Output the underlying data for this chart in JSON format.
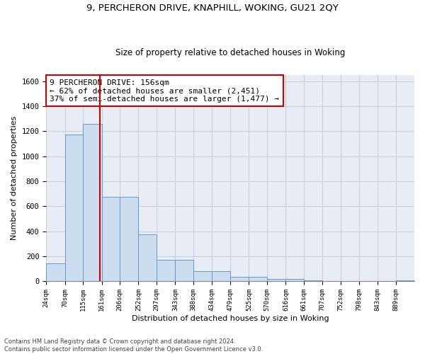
{
  "title_line1": "9, PERCHERON DRIVE, KNAPHILL, WOKING, GU21 2QY",
  "title_line2": "Size of property relative to detached houses in Woking",
  "xlabel": "Distribution of detached houses by size in Woking",
  "ylabel": "Number of detached properties",
  "bar_color": "#ccddf0",
  "bar_edge_color": "#6699cc",
  "grid_color": "#c8d0e0",
  "background_color": "#e8edf5",
  "annotation_box_color": "#cc0000",
  "vline_color": "#cc0000",
  "bins": [
    24,
    70,
    115,
    161,
    206,
    252,
    297,
    343,
    388,
    434,
    479,
    525,
    570,
    616,
    661,
    707,
    752,
    798,
    843,
    889,
    934
  ],
  "values": [
    145,
    1175,
    1260,
    675,
    675,
    375,
    170,
    170,
    80,
    80,
    35,
    35,
    20,
    20,
    10,
    0,
    0,
    0,
    0,
    10
  ],
  "ylim": [
    0,
    1650
  ],
  "yticks": [
    0,
    200,
    400,
    600,
    800,
    1000,
    1200,
    1400,
    1600
  ],
  "property_size": 156,
  "annotation_line1": "9 PERCHERON DRIVE: 156sqm",
  "annotation_line2": "← 62% of detached houses are smaller (2,451)",
  "annotation_line3": "37% of semi-detached houses are larger (1,477) →",
  "footer_line1": "Contains HM Land Registry data © Crown copyright and database right 2024.",
  "footer_line2": "Contains public sector information licensed under the Open Government Licence v3.0."
}
